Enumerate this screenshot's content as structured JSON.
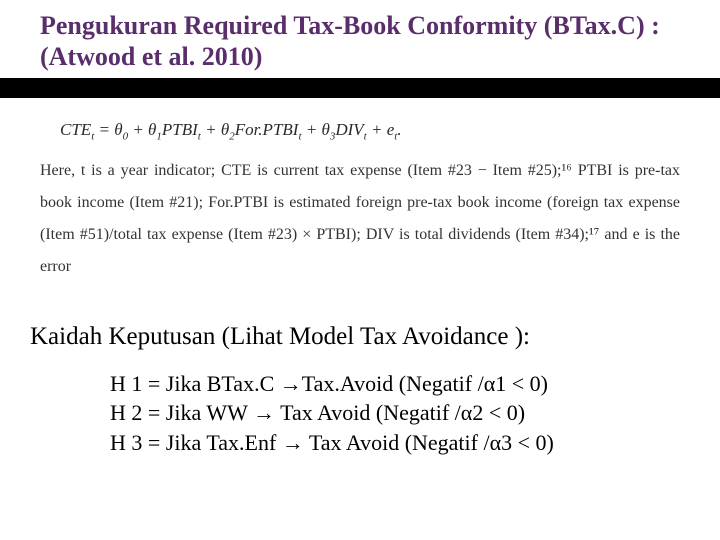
{
  "colors": {
    "title": "#5a2d6b",
    "stripe": "#000000",
    "body_text": "#333333",
    "background": "#ffffff"
  },
  "typography": {
    "title_fontsize": 26,
    "title_weight": "bold",
    "equation_fontsize": 17,
    "desc_fontsize": 16,
    "kaidah_fontsize": 25,
    "hyp_fontsize": 22,
    "font_family": "Times New Roman"
  },
  "layout": {
    "stripe_height": 20,
    "slide_width": 720,
    "slide_height": 540
  },
  "title": "Pengukuran Required Tax-Book Conformity (BTax.C) : (Atwood et al. 2010)",
  "equation": "CTEₜ = θ₀ + θ₁PTBIₜ + θ₂For.PTBIₜ + θ₃DIVₜ + eₜ.",
  "description": "Here, t is a year indicator; CTE is current tax expense (Item #23 − Item #25);¹⁶ PTBI is pre-tax book income (Item #21); For.PTBI is estimated foreign pre-tax book income (foreign tax expense (Item #51)/total tax expense (Item #23) × PTBI); DIV is total dividends (Item #34);¹⁷ and e is the error",
  "kaidah": "Kaidah Keputusan (Lihat Model Tax Avoidance ):",
  "hypotheses": {
    "h1": "H 1 = Jika BTax.C →Tax.Avoid (Negatif /α1 < 0)",
    "h2": "H 2 = Jika WW → Tax Avoid (Negatif /α2 < 0)",
    "h3": "H 3 = Jika Tax.Enf → Tax Avoid (Negatif /α3 < 0)"
  }
}
